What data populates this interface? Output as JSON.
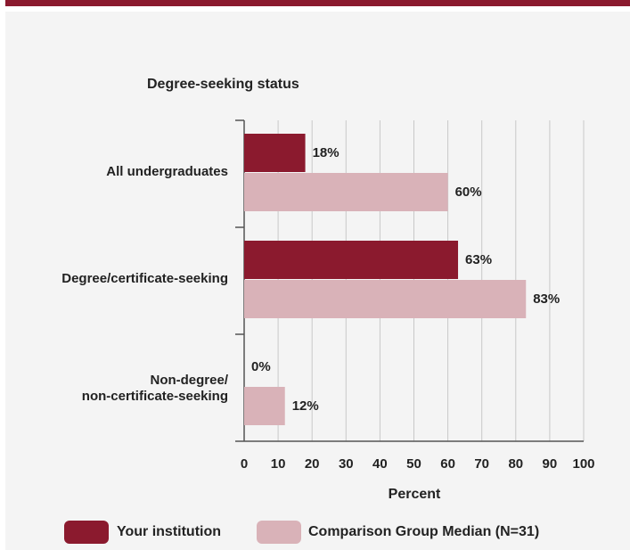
{
  "chart_data": {
    "type": "bar",
    "orientation": "horizontal",
    "title": "Degree-seeking status",
    "categories": [
      "All undergraduates",
      "Degree/certificate-seeking",
      "Non-degree/\nnon-certificate-seeking"
    ],
    "series": [
      {
        "name": "Your institution",
        "color": "#8b1a2e",
        "values": [
          18,
          63,
          0
        ],
        "value_labels": [
          "18%",
          "63%",
          "0%"
        ]
      },
      {
        "name": "Comparison Group Median (N=31)",
        "color": "#d9b2b8",
        "values": [
          60,
          83,
          12
        ],
        "value_labels": [
          "60%",
          "83%",
          "12%"
        ]
      }
    ],
    "xlabel": "Percent",
    "xlim": [
      0,
      100
    ],
    "xticks": [
      0,
      10,
      20,
      30,
      40,
      50,
      60,
      70,
      80,
      90,
      100
    ],
    "grid": true
  }
}
